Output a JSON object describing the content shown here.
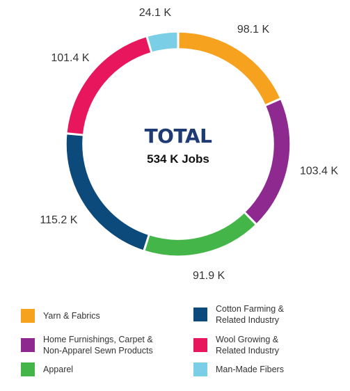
{
  "chart_data": {
    "type": "pie",
    "donut": true,
    "center_title": "TOTAL",
    "center_subtitle": "534 K Jobs",
    "slices": [
      {
        "name": "Yarn & Fabrics",
        "value": 98.1,
        "label": "98.1 K",
        "color": "#f6a21e"
      },
      {
        "name": "Home Furnishings, Carpet &\nNon-Apparel Sewn Products",
        "value": 103.4,
        "label": "103.4 K",
        "color": "#8e2a8f"
      },
      {
        "name": "Apparel",
        "value": 91.9,
        "label": "91.9 K",
        "color": "#44b649"
      },
      {
        "name": "Cotton Farming &\nRelated Industry",
        "value": 115.2,
        "label": "115.2 K",
        "color": "#0b4a7a"
      },
      {
        "name": "Wool Growing &\nRelated Industry",
        "value": 101.4,
        "label": "101.4 K",
        "color": "#e8175d"
      },
      {
        "name": "Man-Made Fibers",
        "value": 24.1,
        "label": "24.1 K",
        "color": "#7acfe6"
      }
    ],
    "legend_position": "bottom"
  }
}
